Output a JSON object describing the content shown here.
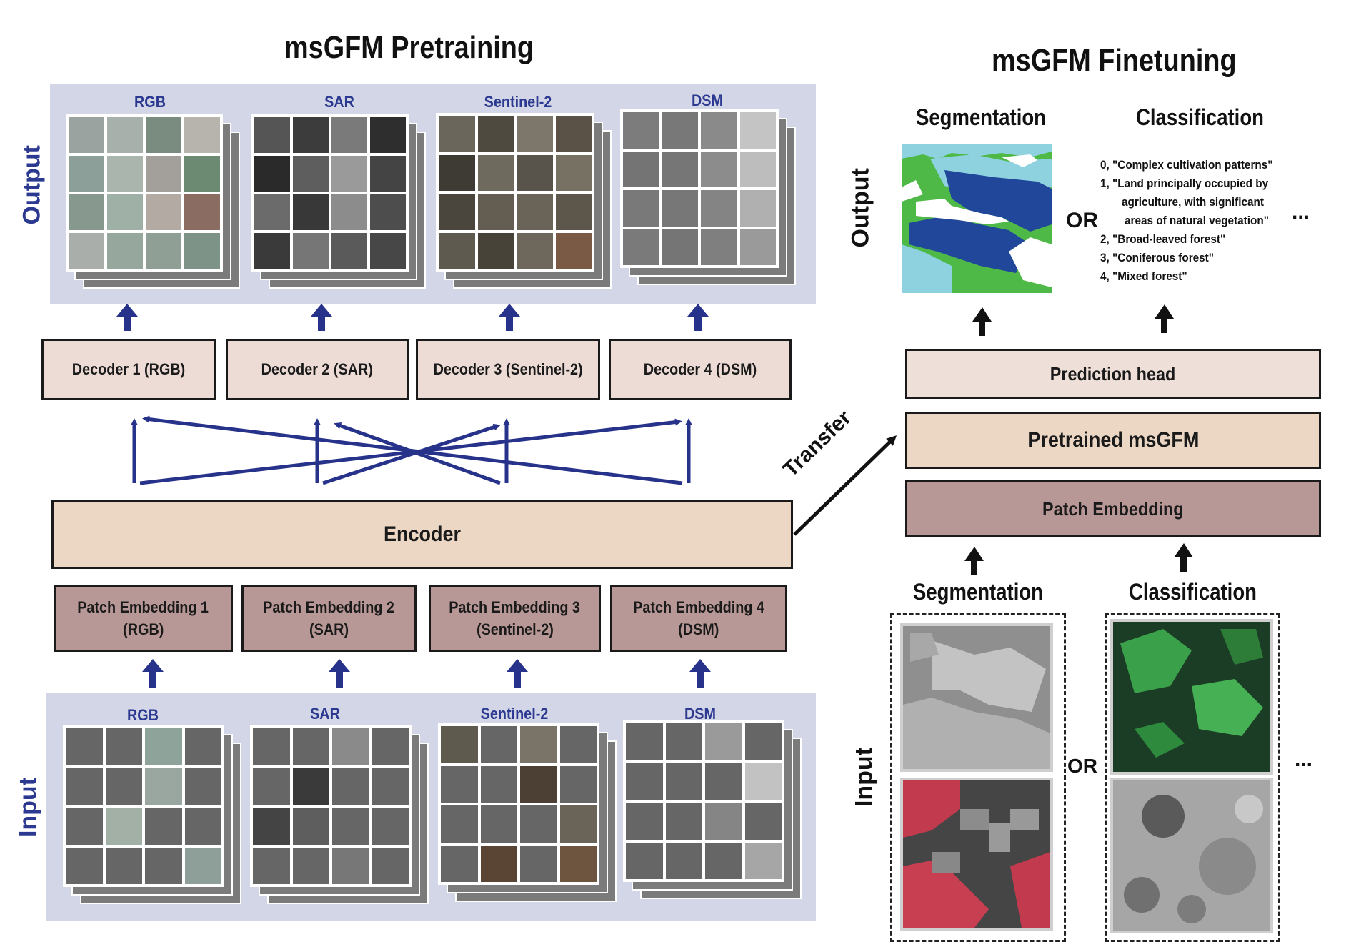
{
  "pretraining": {
    "title": "msGFM Pretraining",
    "output_label": "Output",
    "input_label": "Input",
    "modalities": [
      "RGB",
      "SAR",
      "Sentinel-2",
      "DSM"
    ],
    "decoders": [
      "Decoder 1 (RGB)",
      "Decoder 2 (SAR)",
      "Decoder 3 (Sentinel-2)",
      "Decoder 4 (DSM)"
    ],
    "encoder": "Encoder",
    "patch_embeddings": [
      {
        "line1": "Patch Embedding 1",
        "line2": "(RGB)"
      },
      {
        "line1": "Patch Embedding 2",
        "line2": "(SAR)"
      },
      {
        "line1": "Patch Embedding 3",
        "line2": "(Sentinel-2)"
      },
      {
        "line1": "Patch Embedding 4",
        "line2": "(DSM)"
      }
    ]
  },
  "transfer_label": "Transfer",
  "finetuning": {
    "title": "msGFM Finetuning",
    "output_label": "Output",
    "input_label": "Input",
    "task_segmentation": "Segmentation",
    "task_classification": "Classification",
    "or_label": "OR",
    "ellipsis": "...",
    "classes": [
      "0, \"Complex cultivation patterns\"",
      "1, \"Land principally occupied by",
      "agriculture, with significant",
      "areas of natural vegetation\"",
      "2, \"Broad-leaved forest\"",
      "3, \"Coniferous forest\"",
      "4, \"Mixed forest\""
    ],
    "prediction_head": "Prediction head",
    "pretrained": "Pretrained msGFM",
    "patch_embedding": "Patch Embedding"
  },
  "colors": {
    "arrow": "#27338a",
    "panel": "#d3d6e6",
    "decoder": "#eddcd6",
    "encoder": "#ecd7c5",
    "patch_embedding": "#b89896",
    "seg_green": "#4fb948",
    "seg_cyan": "#8ed2e0",
    "seg_navy": "#21479a"
  }
}
